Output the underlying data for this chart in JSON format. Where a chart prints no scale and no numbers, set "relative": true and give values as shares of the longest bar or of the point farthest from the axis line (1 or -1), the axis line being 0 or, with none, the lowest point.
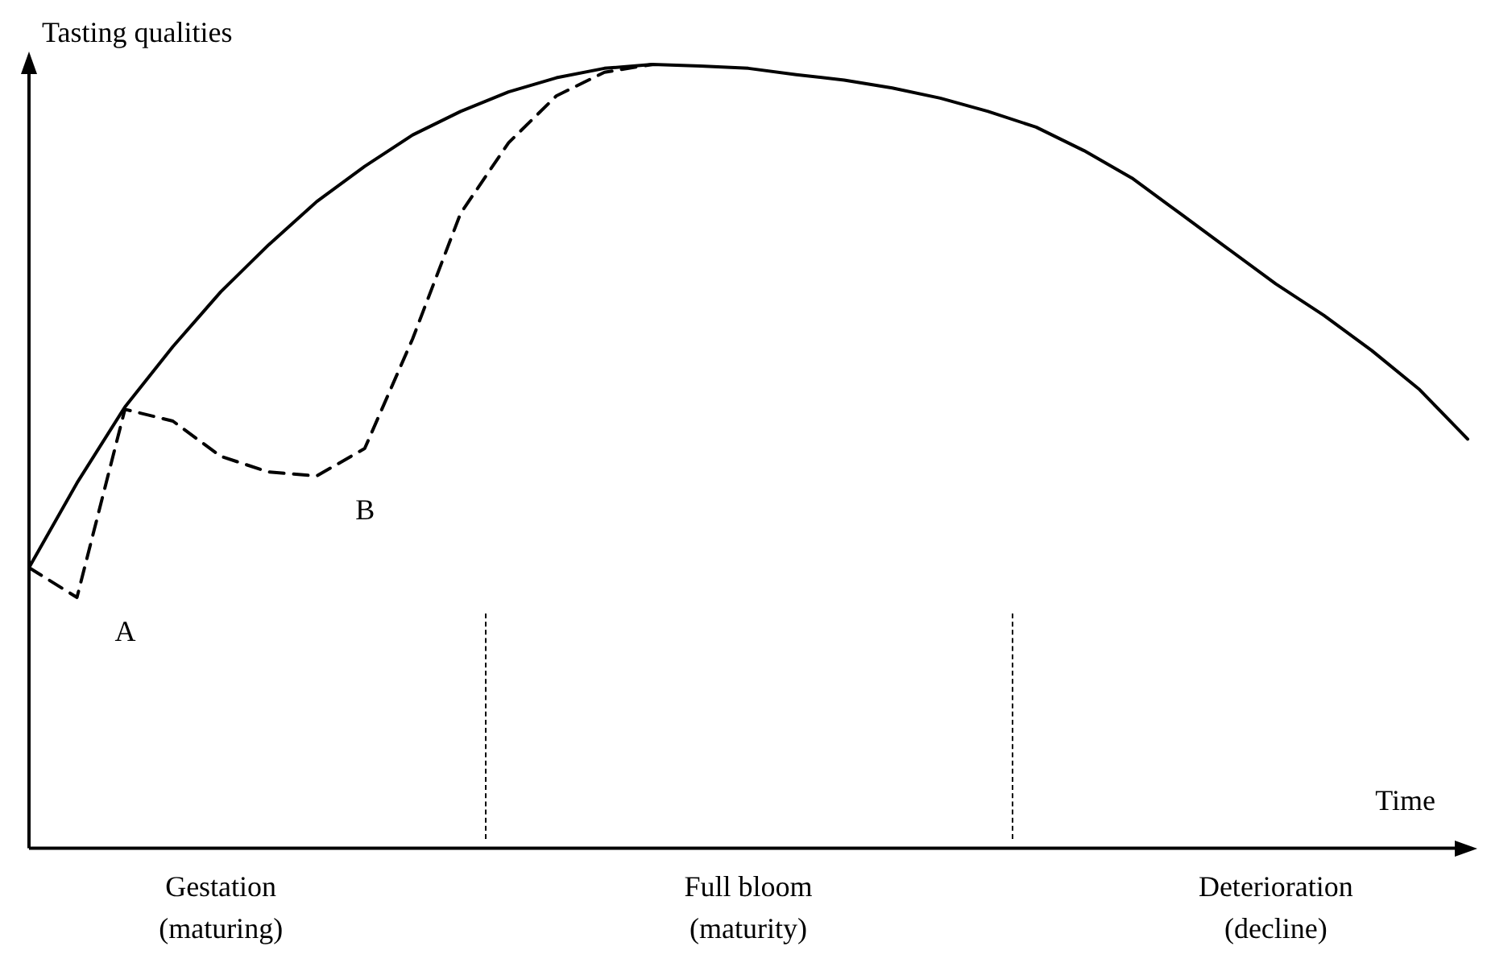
{
  "chart_data": {
    "type": "line",
    "relative": true,
    "ylabel": "Tasting qualities",
    "xlabel": "Time",
    "categories": [
      null,
      null,
      null,
      null,
      "Gestation\n(maturing)",
      null,
      null,
      null,
      null,
      null,
      null,
      null,
      null,
      null,
      null,
      "Full bloom\n(maturity)",
      null,
      null,
      null,
      null,
      null,
      null,
      null,
      null,
      null,
      null,
      "Deterioration\n(decline)",
      null,
      null,
      null,
      null
    ],
    "series": [
      {
        "color": "#000000",
        "line_style": "solid",
        "values": [
          0.358,
          0.466,
          0.563,
          0.64,
          0.71,
          0.77,
          0.825,
          0.87,
          0.91,
          0.94,
          0.965,
          0.983,
          0.995,
          1,
          0.998,
          0.995,
          0.987,
          0.98,
          0.97,
          0.957,
          0.94,
          0.92,
          0.89,
          0.855,
          0.81,
          0.765,
          0.72,
          0.68,
          0.635,
          0.585,
          0.522
        ]
      },
      {
        "color": "#000000",
        "line_style": "dashed",
        "values": [
          0.358,
          0.32,
          0.56,
          0.545,
          0.5,
          0.48,
          0.475,
          0.51,
          0.65,
          0.81,
          0.9,
          0.96,
          0.99,
          1,
          null,
          null,
          null,
          null,
          null,
          null,
          null,
          null,
          null,
          null,
          null,
          null,
          null,
          null,
          null,
          null,
          null
        ]
      }
    ],
    "annotations": [
      "A",
      "B"
    ]
  }
}
